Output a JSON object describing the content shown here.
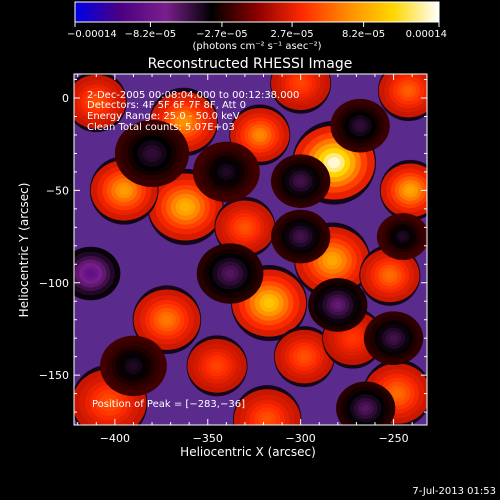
{
  "chart_data": {
    "type": "heatmap",
    "title": "Reconstructed RHESSI Image",
    "xlabel": "Heliocentric X (arcsec)",
    "ylabel": "Heliocentric Y (arcsec)",
    "xlim": [
      -422,
      -232
    ],
    "ylim": [
      -177,
      13
    ],
    "x_ticks": [
      -400,
      -350,
      -300,
      -250
    ],
    "x_tick_labels": [
      "−400",
      "−350",
      "−300",
      "−250"
    ],
    "y_ticks": [
      0,
      -50,
      -100,
      -150
    ],
    "y_tick_labels": [
      "0",
      "−50",
      "−100",
      "−150"
    ],
    "colorbar": {
      "ticks": [
        -0.00014,
        -8.2e-05,
        -2.7e-05,
        2.7e-05,
        8.2e-05,
        0.00014
      ],
      "tick_labels": [
        "−0.00014",
        "−8.2e−05",
        "−2.7e−05",
        "2.7e−05",
        "8.2e−05",
        "0.00014"
      ],
      "range": [
        -0.00014,
        0.00014
      ],
      "stops": [
        "#0000e6",
        "#4b0082",
        "#7a1f8c",
        "#000000",
        "#8b0000",
        "#ff2a00",
        "#ff8c00",
        "#ffd700",
        "#ffffff"
      ]
    },
    "units_label": "(photons cm⁻² s⁻¹ asec⁻²)",
    "annotations": [
      "2-Dec-2005 00:08:04.000 to 00:12:38.000",
      "Detectors: 4F 5F 6F 7F 8F, Att 0",
      "Energy Range: 25.0 - 50.0 keV",
      "Clean    Total counts: 5.07E+03"
    ],
    "peak_label": "Position of Peak = [−283,−36]",
    "peak": [
      -283,
      -36
    ],
    "hot_spots": [
      {
        "x": -282,
        "y": -35,
        "v": 0.00014,
        "r": 11
      },
      {
        "x": -283,
        "y": -88,
        "v": 8.5e-05,
        "r": 10
      },
      {
        "x": -317,
        "y": -111,
        "v": 0.0001,
        "r": 10
      },
      {
        "x": -362,
        "y": -59,
        "v": 9e-05,
        "r": 10
      },
      {
        "x": -363,
        "y": -13,
        "v": 7.5e-05,
        "r": 9
      },
      {
        "x": -322,
        "y": -20,
        "v": 7e-05,
        "r": 8
      },
      {
        "x": -395,
        "y": -50,
        "v": 8e-05,
        "r": 9
      },
      {
        "x": -372,
        "y": -120,
        "v": 6.5e-05,
        "r": 9
      },
      {
        "x": -241,
        "y": -50,
        "v": 8.5e-05,
        "r": 8
      },
      {
        "x": -248,
        "y": -160,
        "v": 6e-05,
        "r": 9
      },
      {
        "x": -403,
        "y": -165,
        "v": 5e-05,
        "r": 10
      },
      {
        "x": -318,
        "y": -174,
        "v": 5e-05,
        "r": 9
      },
      {
        "x": -252,
        "y": -96,
        "v": 6e-05,
        "r": 8
      },
      {
        "x": -330,
        "y": -70,
        "v": 5e-05,
        "r": 8
      },
      {
        "x": -410,
        "y": -2,
        "v": 5e-05,
        "r": 8
      },
      {
        "x": -242,
        "y": 4,
        "v": 5.5e-05,
        "r": 8
      },
      {
        "x": -298,
        "y": -140,
        "v": 5e-05,
        "r": 8
      },
      {
        "x": -345,
        "y": -145,
        "v": 4.5e-05,
        "r": 8
      },
      {
        "x": -272,
        "y": -130,
        "v": 4e-05,
        "r": 8
      },
      {
        "x": -300,
        "y": 8,
        "v": 4.5e-05,
        "r": 8
      },
      {
        "x": -413,
        "y": -95,
        "v": -9e-05,
        "r": 8
      },
      {
        "x": -380,
        "y": -30,
        "v": -5e-05,
        "r": 10
      },
      {
        "x": -340,
        "y": -40,
        "v": -4.5e-05,
        "r": 9
      },
      {
        "x": -300,
        "y": -45,
        "v": -5.5e-05,
        "r": 8
      },
      {
        "x": -338,
        "y": -95,
        "v": -6e-05,
        "r": 9
      },
      {
        "x": -280,
        "y": -112,
        "v": -6.5e-05,
        "r": 8
      },
      {
        "x": -300,
        "y": -75,
        "v": -5.5e-05,
        "r": 8
      },
      {
        "x": -390,
        "y": -145,
        "v": -4.5e-05,
        "r": 9
      },
      {
        "x": -250,
        "y": -130,
        "v": -5.5e-05,
        "r": 8
      },
      {
        "x": -265,
        "y": -168,
        "v": -6e-05,
        "r": 8
      },
      {
        "x": -245,
        "y": -75,
        "v": -4.5e-05,
        "r": 7
      },
      {
        "x": -268,
        "y": -15,
        "v": -5e-05,
        "r": 8
      }
    ]
  },
  "footer": {
    "timestamp": "7-Jul-2013 01:53"
  }
}
